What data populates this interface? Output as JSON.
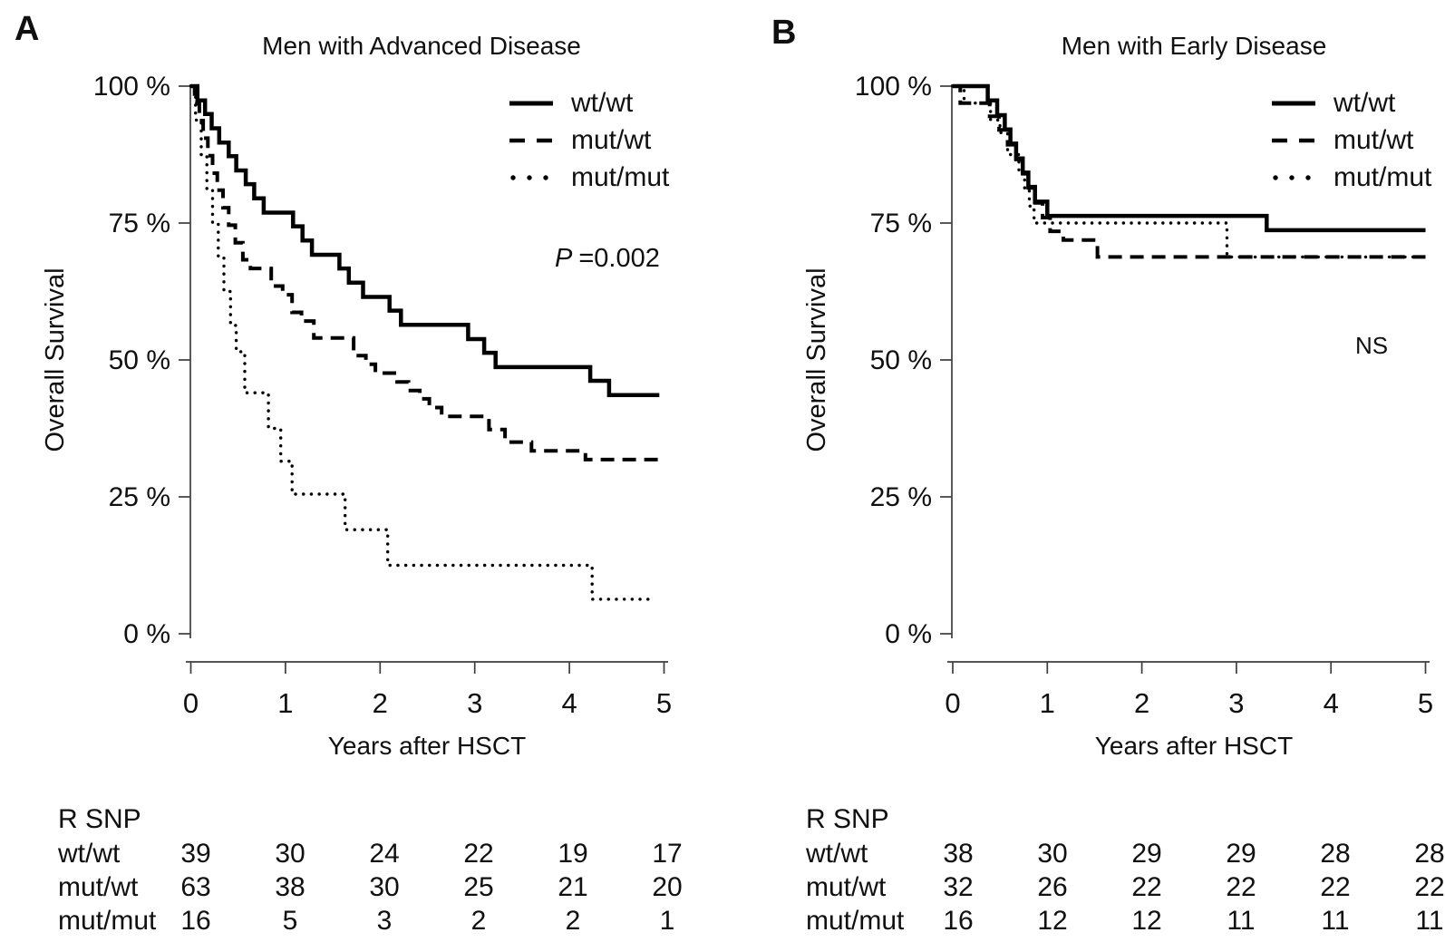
{
  "panel_label_color": "#1d4e74",
  "panels": [
    {
      "label": "A",
      "title": "Men with Advanced Disease",
      "ylabel": "Overall Survival",
      "xlabel": "Years after HSCT",
      "yticks": [
        "100 %",
        "75 %",
        "50 %",
        "25 %",
        "0 %"
      ],
      "xticks": [
        "0",
        "1",
        "2",
        "3",
        "4",
        "5"
      ],
      "legend": [
        {
          "label": "wt/wt",
          "style": "solid"
        },
        {
          "label": "mut/wt",
          "style": "dashed"
        },
        {
          "label": "mut/mut",
          "style": "dotted"
        }
      ],
      "annotation": {
        "p": "P",
        "value": "=0.002"
      },
      "risk_table": {
        "header": "R SNP",
        "rows": [
          {
            "label": "wt/wt",
            "counts": [
              "39",
              "30",
              "24",
              "22",
              "19",
              "17"
            ]
          },
          {
            "label": "mut/wt",
            "counts": [
              "63",
              "38",
              "30",
              "25",
              "21",
              "20"
            ]
          },
          {
            "label": "mut/mut",
            "counts": [
              "16",
              "5",
              "3",
              "2",
              "2",
              "1"
            ]
          }
        ]
      }
    },
    {
      "label": "B",
      "title": "Men with Early Disease",
      "ylabel": "Overall Survival",
      "xlabel": "Years after HSCT",
      "yticks": [
        "100 %",
        "75 %",
        "50 %",
        "25 %",
        "0 %"
      ],
      "xticks": [
        "0",
        "1",
        "2",
        "3",
        "4",
        "5"
      ],
      "legend": [
        {
          "label": "wt/wt",
          "style": "solid"
        },
        {
          "label": "mut/wt",
          "style": "dashed"
        },
        {
          "label": "mut/mut",
          "style": "dotted"
        }
      ],
      "annotation": {
        "p": "",
        "value": "NS"
      },
      "risk_table": {
        "header": "R SNP",
        "rows": [
          {
            "label": "wt/wt",
            "counts": [
              "38",
              "30",
              "29",
              "29",
              "28",
              "28"
            ]
          },
          {
            "label": "mut/wt",
            "counts": [
              "32",
              "26",
              "22",
              "22",
              "22",
              "22"
            ]
          },
          {
            "label": "mut/mut",
            "counts": [
              "16",
              "12",
              "12",
              "11",
              "11",
              "11"
            ]
          }
        ]
      }
    }
  ],
  "chart_data": [
    {
      "type": "line",
      "subtype": "kaplan-meier-step",
      "title": "Men with Advanced Disease",
      "xlabel": "Years after HSCT",
      "ylabel": "Overall Survival (%)",
      "xlim": [
        0,
        5
      ],
      "ylim": [
        0,
        100
      ],
      "yticks_percent": [
        0,
        25,
        50,
        75,
        100
      ],
      "annotation": "P =0.002",
      "legend_position": "top-right",
      "grid": false,
      "series": [
        {
          "name": "wt/wt",
          "line_style": "solid",
          "end_x": 4.95,
          "points": [
            [
              0,
              100
            ],
            [
              0.07,
              97.4
            ],
            [
              0.15,
              94.9
            ],
            [
              0.22,
              92.3
            ],
            [
              0.3,
              89.7
            ],
            [
              0.4,
              87.2
            ],
            [
              0.48,
              84.6
            ],
            [
              0.58,
              82.1
            ],
            [
              0.67,
              79.5
            ],
            [
              0.77,
              76.9
            ],
            [
              1.08,
              74.4
            ],
            [
              1.18,
              71.8
            ],
            [
              1.28,
              69.2
            ],
            [
              1.57,
              66.7
            ],
            [
              1.67,
              64.1
            ],
            [
              1.82,
              61.5
            ],
            [
              2.1,
              59.0
            ],
            [
              2.22,
              56.4
            ],
            [
              2.93,
              53.8
            ],
            [
              3.1,
              51.3
            ],
            [
              3.22,
              48.7
            ],
            [
              4.22,
              46.2
            ],
            [
              4.42,
              43.6
            ]
          ]
        },
        {
          "name": "mut/wt",
          "line_style": "dashed",
          "end_x": 4.94,
          "points": [
            [
              0,
              100
            ],
            [
              0.04,
              96.8
            ],
            [
              0.09,
              93.7
            ],
            [
              0.13,
              90.5
            ],
            [
              0.18,
              87.3
            ],
            [
              0.23,
              84.1
            ],
            [
              0.28,
              81.0
            ],
            [
              0.34,
              77.8
            ],
            [
              0.4,
              74.6
            ],
            [
              0.47,
              71.4
            ],
            [
              0.55,
              68.3
            ],
            [
              0.63,
              66.7
            ],
            [
              0.85,
              63.5
            ],
            [
              0.97,
              61.9
            ],
            [
              1.07,
              58.7
            ],
            [
              1.17,
              57.1
            ],
            [
              1.3,
              54.0
            ],
            [
              1.72,
              50.8
            ],
            [
              1.85,
              49.2
            ],
            [
              1.95,
              47.6
            ],
            [
              2.18,
              46.0
            ],
            [
              2.3,
              44.4
            ],
            [
              2.42,
              42.9
            ],
            [
              2.52,
              41.3
            ],
            [
              2.65,
              39.7
            ],
            [
              3.15,
              37.3
            ],
            [
              3.32,
              35.0
            ],
            [
              3.6,
              33.4
            ],
            [
              4.17,
              31.8
            ]
          ]
        },
        {
          "name": "mut/mut",
          "line_style": "dotted",
          "end_x": 4.85,
          "points": [
            [
              0,
              100
            ],
            [
              0.05,
              93.8
            ],
            [
              0.11,
              87.5
            ],
            [
              0.17,
              81.3
            ],
            [
              0.23,
              75.0
            ],
            [
              0.29,
              68.8
            ],
            [
              0.35,
              62.5
            ],
            [
              0.42,
              56.3
            ],
            [
              0.48,
              51.5
            ],
            [
              0.57,
              44.0
            ],
            [
              0.82,
              37.5
            ],
            [
              0.95,
              31.5
            ],
            [
              1.07,
              25.5
            ],
            [
              1.63,
              19.0
            ],
            [
              2.08,
              12.5
            ],
            [
              4.24,
              6.3
            ]
          ]
        }
      ],
      "number_at_risk": {
        "times": [
          0,
          1,
          2,
          3,
          4,
          5
        ],
        "groups": [
          {
            "name": "wt/wt",
            "counts": [
              39,
              30,
              24,
              22,
              19,
              17
            ]
          },
          {
            "name": "mut/wt",
            "counts": [
              63,
              38,
              30,
              25,
              21,
              20
            ]
          },
          {
            "name": "mut/mut",
            "counts": [
              16,
              5,
              3,
              2,
              2,
              1
            ]
          }
        ]
      }
    },
    {
      "type": "line",
      "subtype": "kaplan-meier-step",
      "title": "Men with Early Disease",
      "xlabel": "Years after HSCT",
      "ylabel": "Overall Survival (%)",
      "xlim": [
        0,
        5
      ],
      "ylim": [
        0,
        100
      ],
      "yticks_percent": [
        0,
        25,
        50,
        75,
        100
      ],
      "annotation": "NS",
      "legend_position": "top-right",
      "grid": false,
      "series": [
        {
          "name": "wt/wt",
          "line_style": "solid",
          "end_x": 5.0,
          "points": [
            [
              0,
              100
            ],
            [
              0.37,
              97.4
            ],
            [
              0.47,
              94.7
            ],
            [
              0.55,
              92.1
            ],
            [
              0.61,
              89.5
            ],
            [
              0.67,
              86.8
            ],
            [
              0.74,
              84.2
            ],
            [
              0.8,
              81.6
            ],
            [
              0.87,
              78.9
            ],
            [
              1.0,
              76.3
            ],
            [
              3.32,
              73.7
            ]
          ]
        },
        {
          "name": "mut/wt",
          "line_style": "dashed",
          "end_x": 5.0,
          "points": [
            [
              0,
              100
            ],
            [
              0.08,
              96.9
            ],
            [
              0.39,
              94.5
            ],
            [
              0.49,
              92.0
            ],
            [
              0.58,
              89.3
            ],
            [
              0.67,
              86.6
            ],
            [
              0.74,
              84.0
            ],
            [
              0.8,
              81.4
            ],
            [
              0.87,
              78.7
            ],
            [
              0.95,
              76.0
            ],
            [
              1.03,
              73.5
            ],
            [
              1.17,
              71.9
            ],
            [
              1.53,
              68.8
            ]
          ]
        },
        {
          "name": "mut/mut",
          "line_style": "dotted",
          "end_x": 5.0,
          "points": [
            [
              0,
              100
            ],
            [
              0.12,
              96.9
            ],
            [
              0.4,
              93.8
            ],
            [
              0.5,
              91.5
            ],
            [
              0.58,
              87.5
            ],
            [
              0.7,
              84.4
            ],
            [
              0.76,
              81.3
            ],
            [
              0.81,
              78.1
            ],
            [
              0.86,
              75.0
            ],
            [
              2.9,
              68.8
            ]
          ]
        }
      ],
      "number_at_risk": {
        "times": [
          0,
          1,
          2,
          3,
          4,
          5
        ],
        "groups": [
          {
            "name": "wt/wt",
            "counts": [
              38,
              30,
              29,
              29,
              28,
              28
            ]
          },
          {
            "name": "mut/wt",
            "counts": [
              32,
              26,
              22,
              22,
              22,
              22
            ]
          },
          {
            "name": "mut/mut",
            "counts": [
              16,
              12,
              12,
              11,
              11,
              11
            ]
          }
        ]
      }
    }
  ]
}
